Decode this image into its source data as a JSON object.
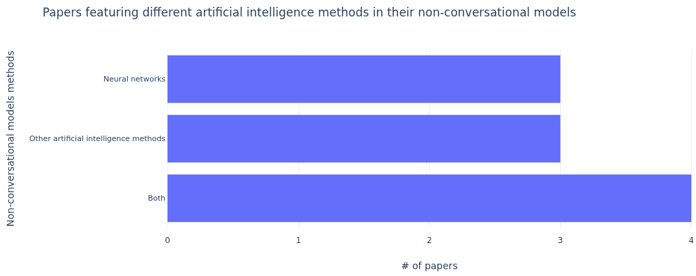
{
  "chart_data": {
    "type": "bar",
    "orientation": "horizontal",
    "title": "Papers featuring different artificial intelligence methods in their non-conversational models",
    "xlabel": "# of papers",
    "ylabel": "Non-conversational models methods",
    "categories": [
      "Neural networks",
      "Other artificial intelligence methods",
      "Both"
    ],
    "values": [
      3,
      3,
      4
    ],
    "color": "#636efa",
    "xlim": [
      0,
      4
    ],
    "xticks": [
      0,
      1,
      2,
      3,
      4
    ],
    "grid": "x"
  }
}
